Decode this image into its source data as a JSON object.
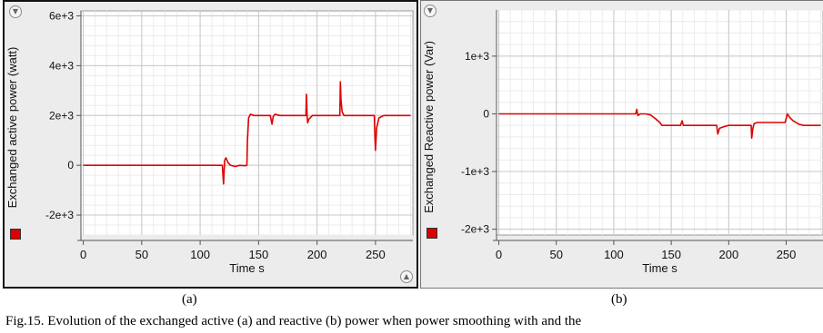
{
  "chart_data": [
    {
      "type": "line",
      "xlabel": "Time s",
      "ylabel": "Exchanged active power (watt)",
      "xlim": [
        -2,
        282
      ],
      "ylim": [
        -2800,
        6200
      ],
      "x_ticks": [
        0,
        50,
        100,
        150,
        200,
        250
      ],
      "x_tick_labels": [
        "0",
        "50",
        "100",
        "150",
        "200",
        "250"
      ],
      "y_ticks": [
        -2000,
        0,
        2000,
        4000,
        6000
      ],
      "y_tick_labels": [
        "-2e+3",
        "0",
        "2e+3",
        "4e+3",
        "6e+3"
      ],
      "grid": true,
      "color": "#e00000",
      "series": [
        {
          "x": [
            0,
            100,
            119,
            120,
            120.5,
            121,
            122,
            124,
            126,
            130,
            134,
            138,
            140,
            140.5,
            141.5,
            143,
            146,
            150,
            155,
            160,
            161.5,
            162.5,
            164,
            168,
            175,
            185,
            190.5,
            191,
            191.5,
            192,
            193,
            196,
            200,
            210,
            219.5,
            220,
            220.5,
            221.5,
            223,
            227,
            235,
            245,
            249,
            249.5,
            250,
            251,
            253,
            257,
            265,
            280
          ],
          "y": [
            0,
            0,
            0,
            -750,
            -300,
            200,
            300,
            100,
            0,
            -50,
            0,
            -20,
            0,
            1000,
            1900,
            2050,
            2000,
            2000,
            2000,
            2000,
            1650,
            1950,
            2050,
            2000,
            2000,
            2000,
            2000,
            2850,
            2000,
            1700,
            1850,
            2000,
            2000,
            2000,
            2000,
            3350,
            2600,
            2150,
            2000,
            2000,
            2000,
            2000,
            2000,
            1200,
            600,
            1500,
            1900,
            2000,
            2000,
            2000
          ]
        }
      ]
    },
    {
      "type": "line",
      "xlabel": "Time s",
      "ylabel": "Exchanged Reactive power (Var)",
      "xlim": [
        -2,
        282
      ],
      "ylim": [
        -2100,
        1800
      ],
      "x_ticks": [
        0,
        50,
        100,
        150,
        200,
        250
      ],
      "x_tick_labels": [
        "0",
        "50",
        "100",
        "150",
        "200",
        "250"
      ],
      "y_ticks": [
        -2000,
        -1000,
        0,
        1000
      ],
      "y_tick_labels": [
        "-2e+3",
        "-1e+3",
        "0",
        "1e+3"
      ],
      "grid": true,
      "color": "#e00000",
      "series": [
        {
          "x": [
            0,
            119,
            120,
            121,
            123,
            128,
            132,
            136,
            140,
            142,
            146,
            150,
            158,
            159.5,
            160.5,
            162,
            170,
            180,
            189.5,
            190.5,
            192,
            196,
            200,
            210,
            219.5,
            220,
            221,
            222,
            225,
            235,
            249,
            250,
            251,
            253,
            256,
            261,
            265,
            280
          ],
          "y": [
            0,
            0,
            80,
            -30,
            0,
            0,
            -20,
            -80,
            -150,
            -200,
            -200,
            -200,
            -200,
            -120,
            -200,
            -200,
            -200,
            -200,
            -200,
            -350,
            -250,
            -220,
            -200,
            -200,
            -200,
            -420,
            -250,
            -170,
            -150,
            -150,
            -150,
            -80,
            0,
            -60,
            -120,
            -180,
            -200,
            -200
          ]
        }
      ]
    }
  ],
  "captions": {
    "a": "(a)",
    "b": "(b)",
    "footer": "Fig.15.    Evolution of the exchanged active (a) and reactive (b) power when power smoothing with and the"
  },
  "icons": {
    "scroll_down": "chevron-down-circle-icon",
    "scroll_up": "chevron-up-circle-icon",
    "legend": "red-square-legend-icon"
  }
}
